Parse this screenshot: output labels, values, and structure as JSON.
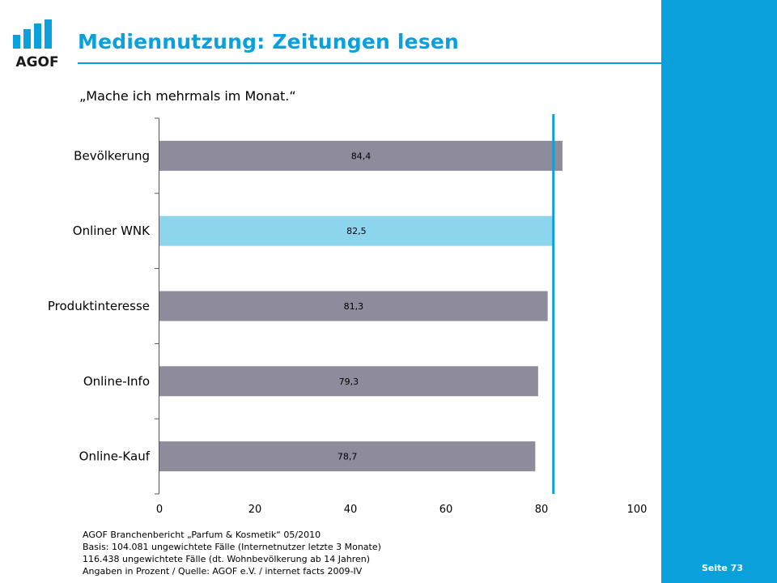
{
  "header": {
    "logo_text": "AGOF",
    "title": "Mediennutzung: Zeitungen lesen",
    "subtitle": "„Mache ich mehrmals im Monat.“"
  },
  "colors": {
    "accent": "#0aa0dc",
    "bar_default": "#8e8c9c",
    "bar_highlight": "#8dd5ec",
    "reference_line": "#0aa0dc"
  },
  "chart_data": {
    "type": "bar",
    "orientation": "horizontal",
    "categories": [
      "Bevölkerung",
      "Onliner WNK",
      "Produktinteresse",
      "Online-Info",
      "Online-Kauf"
    ],
    "values": [
      84.4,
      82.5,
      81.3,
      79.3,
      78.7
    ],
    "value_labels": [
      "84,4",
      "82,5",
      "81,3",
      "79,3",
      "78,7"
    ],
    "highlight_index": 1,
    "reference_value": 82.5,
    "xlim": [
      0,
      100
    ],
    "xticks": [
      0,
      20,
      40,
      60,
      80,
      100
    ],
    "grid": false,
    "title": "",
    "xlabel": "",
    "ylabel": ""
  },
  "footer": {
    "line1": "AGOF Branchenbericht „Parfum & Kosmetik“ 05/2010",
    "line2": "Basis: 104.081 ungewichtete Fälle (Internetnutzer letzte 3 Monate)",
    "line3": "116.438 ungewichtete Fälle (dt. Wohnbevölkerung ab 14 Jahren)",
    "line4": "Angaben in Prozent / Quelle: AGOF e.V. / internet facts 2009-IV"
  },
  "page": {
    "label": "Seite 73"
  }
}
